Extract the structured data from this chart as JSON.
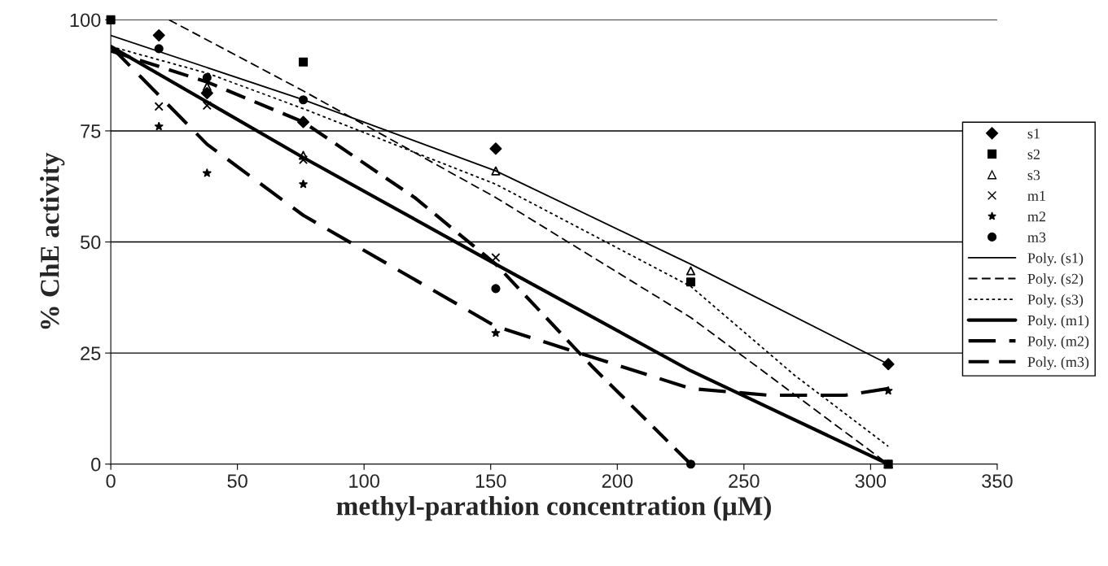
{
  "chart_data": {
    "type": "scatter",
    "xlabel": "methyl-parathion concentration (µM)",
    "ylabel": "% ChE activity",
    "xlim": [
      0,
      350
    ],
    "xticks": [
      0,
      50,
      100,
      150,
      200,
      250,
      300,
      350
    ],
    "ylim": [
      0,
      100
    ],
    "yticks": [
      0,
      25,
      50,
      75,
      100
    ],
    "grid": "y",
    "legend": "right",
    "x": [
      0,
      19,
      38,
      76,
      152,
      229,
      307
    ],
    "series": [
      {
        "name": "s1",
        "color": "#000000",
        "marker": "diamond",
        "values": [
          null,
          96.5,
          83.5,
          77,
          71,
          null,
          22.5
        ]
      },
      {
        "name": "s2",
        "color": "#000000",
        "marker": "square",
        "values": [
          100,
          null,
          null,
          90.5,
          null,
          41,
          0
        ]
      },
      {
        "name": "s3",
        "color": "#000000",
        "marker": "triangle",
        "values": [
          null,
          null,
          85,
          69.5,
          66,
          43.5,
          0
        ]
      },
      {
        "name": "m1",
        "color": "#000000",
        "marker": "cross",
        "values": [
          null,
          80.5,
          80.7,
          68.5,
          46.5,
          null,
          0
        ]
      },
      {
        "name": "m2",
        "color": "#000000",
        "marker": "star",
        "values": [
          null,
          76,
          65.5,
          63,
          29.5,
          null,
          16.5
        ]
      },
      {
        "name": "m3",
        "color": "#000000",
        "marker": "circle",
        "values": [
          null,
          93.5,
          87,
          82,
          39.5,
          0,
          null
        ]
      },
      {
        "name": "Poly. (s1)",
        "type": "line",
        "color": "#000000",
        "line_style": "solid",
        "x": [
          0,
          76,
          152,
          229,
          307
        ],
        "values": [
          96.5,
          82,
          66,
          45,
          22.5
        ]
      },
      {
        "name": "Poly. (s2)",
        "type": "line",
        "color": "#000000",
        "line_style": "dashed",
        "x": [
          23,
          76,
          152,
          229,
          307
        ],
        "values": [
          100,
          84,
          60,
          33,
          0
        ]
      },
      {
        "name": "Poly. (s3)",
        "type": "line",
        "color": "#000000",
        "line_style": "dotted",
        "x": [
          0,
          38,
          76,
          152,
          229,
          270,
          307
        ],
        "values": [
          94,
          88,
          80,
          63,
          40,
          20,
          4
        ]
      },
      {
        "name": "Poly. (m1)",
        "type": "line",
        "color": "#000000",
        "line_style": "solid",
        "x": [
          0,
          76,
          152,
          229,
          307
        ],
        "values": [
          94,
          69,
          45,
          21,
          0
        ]
      },
      {
        "name": "Poly. (m2)",
        "type": "line",
        "color": "#000000",
        "line_style": "dashed",
        "x": [
          0,
          38,
          76,
          152,
          229,
          260,
          290,
          307
        ],
        "values": [
          94,
          72,
          56,
          31,
          17,
          15.5,
          15.5,
          17
        ]
      },
      {
        "name": "Poly. (m3)",
        "type": "line",
        "color": "#000000",
        "line_style": "dashed",
        "x": [
          0,
          38,
          76,
          120,
          152,
          190,
          229
        ],
        "values": [
          93,
          86,
          77,
          60,
          45,
          22,
          0
        ]
      }
    ]
  }
}
